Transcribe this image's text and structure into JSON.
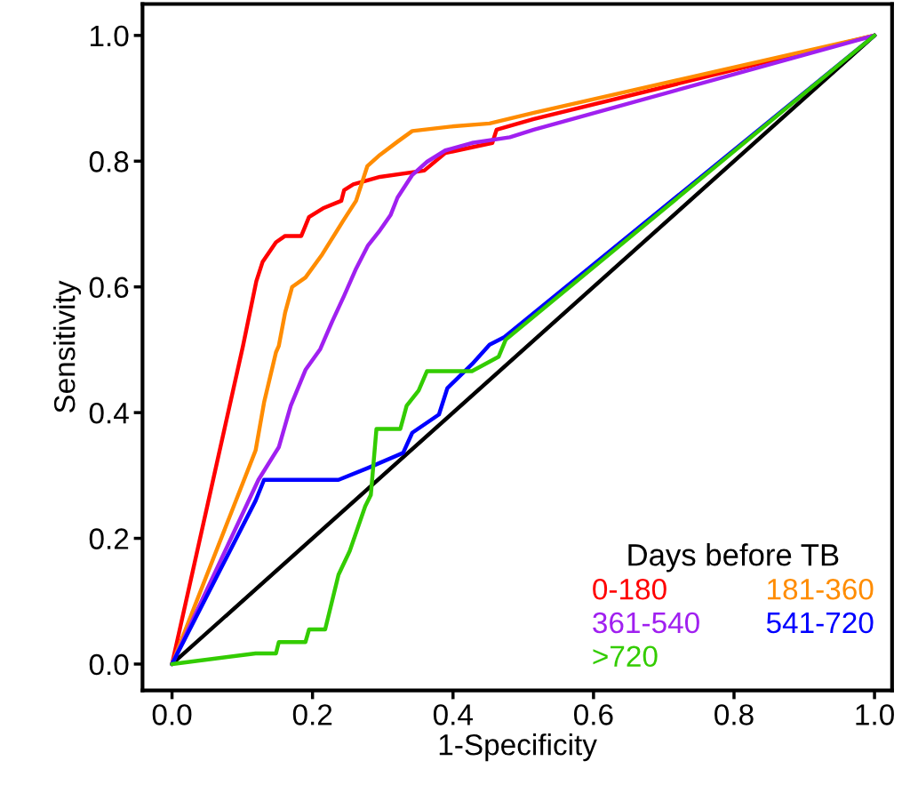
{
  "chart_data": {
    "type": "line",
    "xlabel": "1-Specificity",
    "ylabel": "Sensitivity",
    "legend_title": "Days before TB",
    "legend": "bottom right",
    "grid": false,
    "marker": "none",
    "line_style": "solid",
    "xlim": [
      -0.042,
      1.025
    ],
    "ylim": [
      -0.042,
      1.05
    ],
    "xticks": [
      {
        "value": 0,
        "label": "0.0"
      },
      {
        "value": 0.2,
        "label": "0.2"
      },
      {
        "value": 0.4,
        "label": "0.4"
      },
      {
        "value": 0.6,
        "label": "0.6"
      },
      {
        "value": 0.8,
        "label": "0.8"
      },
      {
        "value": 1,
        "label": "1.0"
      }
    ],
    "yticks": [
      {
        "value": 0,
        "label": "0.0"
      },
      {
        "value": 0.2,
        "label": "0.2"
      },
      {
        "value": 0.4,
        "label": "0.4"
      },
      {
        "value": 0.6,
        "label": "0.6"
      },
      {
        "value": 0.8,
        "label": "0.8"
      },
      {
        "value": 1,
        "label": "1.0"
      }
    ],
    "series": [
      {
        "color": "#000000",
        "x": [
          0,
          1
        ],
        "values": [
          0,
          1
        ]
      },
      {
        "name": "0-180",
        "color": "#ff0000",
        "x": [
          0,
          0.101,
          0.12,
          0.129,
          0.148,
          0.161,
          0.184,
          0.195,
          0.215,
          0.241,
          0.245,
          0.258,
          0.296,
          0.359,
          0.389,
          0.456,
          0.462,
          0.515,
          1
        ],
        "values": [
          0,
          0.506,
          0.609,
          0.64,
          0.671,
          0.681,
          0.681,
          0.711,
          0.725,
          0.737,
          0.754,
          0.763,
          0.775,
          0.785,
          0.813,
          0.829,
          0.85,
          0.867,
          1
        ]
      },
      {
        "name": "181-360",
        "color": "#ff8c00",
        "x": [
          0,
          0.119,
          0.131,
          0.148,
          0.152,
          0.161,
          0.171,
          0.19,
          0.214,
          0.243,
          0.262,
          0.278,
          0.296,
          0.321,
          0.342,
          0.397,
          0.452,
          0.515,
          1
        ],
        "values": [
          0,
          0.34,
          0.416,
          0.496,
          0.506,
          0.559,
          0.6,
          0.615,
          0.652,
          0.704,
          0.737,
          0.792,
          0.81,
          0.831,
          0.848,
          0.855,
          0.86,
          0.877,
          1
        ]
      },
      {
        "name": "361-540",
        "color": "#a020f0",
        "x": [
          0,
          0.123,
          0.152,
          0.169,
          0.19,
          0.211,
          0.228,
          0.245,
          0.262,
          0.279,
          0.296,
          0.311,
          0.321,
          0.342,
          0.363,
          0.389,
          0.427,
          0.481,
          0.515,
          1
        ],
        "values": [
          0,
          0.293,
          0.345,
          0.411,
          0.468,
          0.501,
          0.545,
          0.586,
          0.629,
          0.666,
          0.69,
          0.714,
          0.742,
          0.778,
          0.799,
          0.817,
          0.829,
          0.838,
          0.85,
          1
        ]
      },
      {
        "name": "541-720",
        "color": "#0000ff",
        "x": [
          0,
          0.119,
          0.131,
          0.237,
          0.279,
          0.329,
          0.342,
          0.38,
          0.392,
          0.427,
          0.452,
          0.473,
          1
        ],
        "values": [
          0,
          0.26,
          0.293,
          0.293,
          0.312,
          0.336,
          0.368,
          0.397,
          0.439,
          0.477,
          0.508,
          0.52,
          1
        ]
      },
      {
        "name": ">720",
        "color": "#33cc00",
        "x": [
          0,
          0.119,
          0.148,
          0.152,
          0.19,
          0.195,
          0.218,
          0.237,
          0.253,
          0.275,
          0.283,
          0.291,
          0.325,
          0.334,
          0.351,
          0.363,
          0.427,
          0.465,
          0.475,
          1
        ],
        "values": [
          0,
          0.017,
          0.017,
          0.035,
          0.035,
          0.055,
          0.055,
          0.142,
          0.18,
          0.251,
          0.269,
          0.374,
          0.374,
          0.411,
          0.435,
          0.466,
          0.466,
          0.489,
          0.516,
          1
        ]
      }
    ]
  }
}
